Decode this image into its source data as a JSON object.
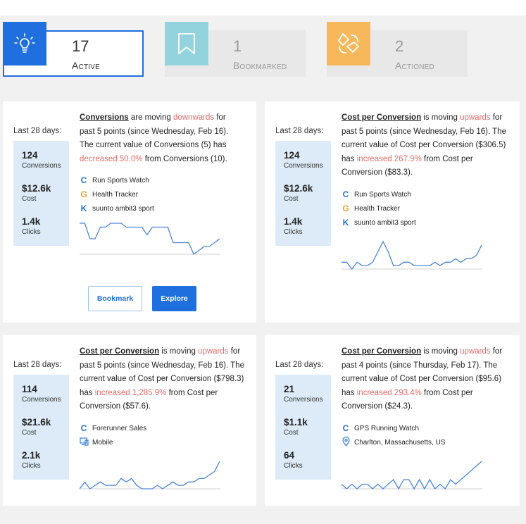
{
  "tabs": [
    {
      "count": "17",
      "label": "Active",
      "color": "#1f6fde",
      "icon": "lightbulb-icon"
    },
    {
      "count": "1",
      "label": "Bookmarked",
      "color": "#93d3de",
      "icon": "bookmark-icon"
    },
    {
      "count": "2",
      "label": "Actioned",
      "color": "#f6b85b",
      "icon": "recycle-arrows-icon"
    }
  ],
  "colors": {
    "accent": "#1f6fde",
    "negative": "#e86a6a",
    "metric_bg": "#dcebf7",
    "line": "#4a86d8"
  },
  "cards": [
    {
      "period": "Last 28 days:",
      "metrics": [
        {
          "value": "124",
          "label": "Conversions"
        },
        {
          "value": "$12.6k",
          "label": "Cost"
        },
        {
          "value": "1.4k",
          "label": "Clicks"
        }
      ],
      "desc": {
        "metric": "Conversions",
        "is_moving": " are moving ",
        "direction": "downwards",
        "since": " for past 5 points (since Wednesday, Feb 16). The current value of Conversions (5) has ",
        "change": "decreased 50.0%",
        "from": " from Conversions (10)."
      },
      "segments": [
        {
          "glyph": "C",
          "text": "Run Sports Watch"
        },
        {
          "glyph": "G",
          "text": "Health Tracker"
        },
        {
          "glyph": "K",
          "text": "suunto ambit3 sport"
        }
      ],
      "sparkline": [
        10,
        10,
        6,
        6,
        9,
        9,
        10,
        10,
        10,
        9,
        9,
        9,
        9,
        7,
        9,
        9,
        9,
        9,
        5,
        5,
        5,
        5,
        2,
        3,
        4,
        4,
        5,
        6
      ],
      "buttons": {
        "bookmark": "Bookmark",
        "explore": "Explore"
      }
    },
    {
      "period": "Last 28 days:",
      "metrics": [
        {
          "value": "124",
          "label": "Conversions"
        },
        {
          "value": "$12.6k",
          "label": "Cost"
        },
        {
          "value": "1.4k",
          "label": "Clicks"
        }
      ],
      "desc": {
        "metric": "Cost per Conversion",
        "is_moving": " is moving ",
        "direction": "upwards",
        "since": " for past 5 points (since Wednesday, Feb 16). The current value of Cost per Conversion ($306.5) has ",
        "change": "increased 267.9%",
        "from": " from Cost per Conversion ($83.3)."
      },
      "segments": [
        {
          "glyph": "C",
          "text": "Run Sports Watch"
        },
        {
          "glyph": "G",
          "text": "Health Tracker"
        },
        {
          "glyph": "K",
          "text": "suunto ambit3 sport"
        }
      ],
      "sparkline": [
        3,
        3,
        1,
        3,
        2,
        2,
        3,
        6,
        9,
        6,
        2,
        2,
        3,
        3,
        2,
        2,
        2,
        2,
        3,
        2,
        3,
        3,
        4,
        3,
        4,
        4,
        5,
        8
      ],
      "buttons": null
    },
    {
      "period": "Last 28 days:",
      "metrics": [
        {
          "value": "114",
          "label": "Conversions"
        },
        {
          "value": "$21.6k",
          "label": "Cost"
        },
        {
          "value": "2.1k",
          "label": "Clicks"
        }
      ],
      "desc": {
        "metric": "Cost per Conversion",
        "is_moving": " is moving ",
        "direction": "upwards",
        "since": " for past 5 points (since Wednesday, Feb 16). The current value of Cost per Conversion ($798.3) has ",
        "change": "increased 1,285.9%",
        "from": " from Cost per Conversion ($57.6)."
      },
      "segments": [
        {
          "glyph": "C",
          "text": "Forerunner Sales"
        },
        {
          "glyph": "",
          "text": "Mobile"
        }
      ],
      "sparkline": [
        1,
        3,
        1,
        2,
        3,
        2,
        2,
        2,
        4,
        3,
        4,
        2,
        1,
        1,
        1,
        2,
        1,
        2,
        3,
        2,
        2,
        3,
        3,
        4,
        4,
        5,
        6,
        9
      ],
      "buttons": null
    },
    {
      "period": "Last 28 days:",
      "metrics": [
        {
          "value": "21",
          "label": "Conversions"
        },
        {
          "value": "$1.1k",
          "label": "Cost"
        },
        {
          "value": "64",
          "label": "Clicks"
        }
      ],
      "desc": {
        "metric": "Cost per Conversion",
        "is_moving": " is moving ",
        "direction": "upwards",
        "since": " for past 4 points (since Thursday, Feb 17). The current value of Cost per Conversion ($95.6) has ",
        "change": "increased 293.4%",
        "from": " from Cost per Conversion ($24.3)."
      },
      "segments": [
        {
          "glyph": "C",
          "text": "GPS Running Watch"
        },
        {
          "glyph": "",
          "text": "Charlton, Massachusetts, US"
        }
      ],
      "sparkline": [
        2,
        1,
        2,
        1,
        2,
        2,
        1,
        2,
        1,
        2,
        3,
        1,
        3,
        3,
        1,
        3,
        1,
        3,
        1,
        2,
        1,
        3,
        2,
        3,
        4,
        5,
        6,
        7
      ],
      "buttons": null
    }
  ]
}
